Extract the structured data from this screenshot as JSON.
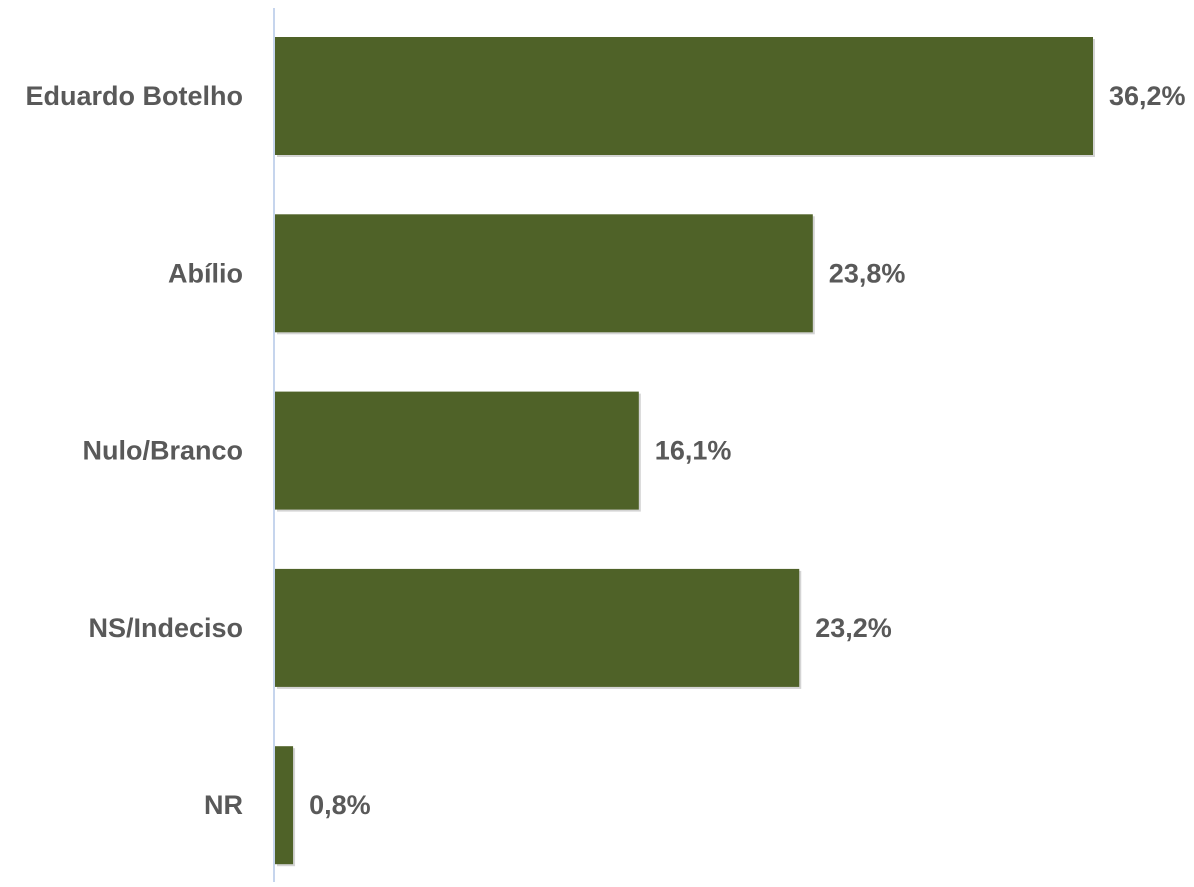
{
  "chart_data": {
    "type": "bar",
    "orientation": "horizontal",
    "categories": [
      "Eduardo Botelho",
      "Abílio",
      "Nulo/Branco",
      "NS/Indeciso",
      "NR"
    ],
    "values": [
      36.2,
      23.8,
      16.1,
      23.2,
      0.8
    ],
    "value_labels": [
      "36,2%",
      "23,8%",
      "16,1%",
      "23,2%",
      "0,8%"
    ],
    "xlim": [
      0,
      36.2
    ],
    "grid": false,
    "legend": "none",
    "colors": {
      "bar": "#4f6228",
      "bar_shadow": "#c9c9c9",
      "axis": "#b4c7e7",
      "text": "#595959"
    }
  }
}
